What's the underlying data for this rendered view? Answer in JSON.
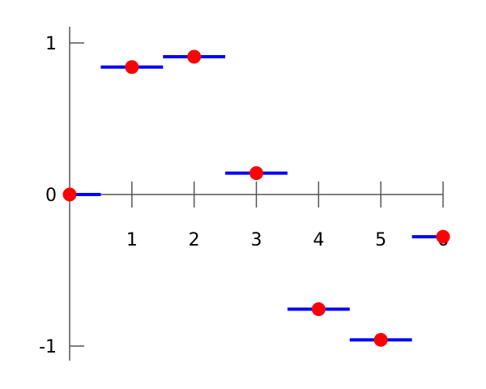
{
  "chart_data": {
    "type": "scatter",
    "title": "",
    "xlabel": "",
    "ylabel": "",
    "xlim": [
      0,
      6
    ],
    "ylim": [
      -1,
      1
    ],
    "grid": false,
    "x_ticks": [
      "1",
      "2",
      "3",
      "4",
      "5",
      "6"
    ],
    "y_ticks": [
      "1",
      "0",
      "-1"
    ],
    "points": {
      "x": [
        0,
        1,
        2,
        3,
        4,
        5,
        6
      ],
      "y": [
        0,
        0.841,
        0.909,
        0.141,
        -0.757,
        -0.959,
        -0.279
      ],
      "color": "#ff0000"
    },
    "steps": {
      "description_style": "horizontal segments centered on each point spanning ±0.5",
      "color": "#0000ff"
    },
    "axis_color": "#555555"
  }
}
